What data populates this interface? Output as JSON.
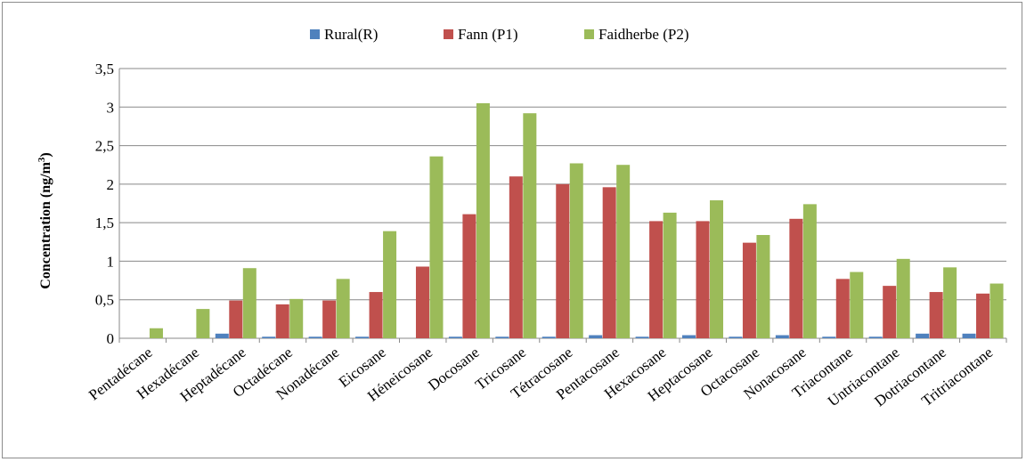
{
  "chart_data": {
    "type": "bar",
    "title": "",
    "xlabel": "",
    "ylabel": "Concentration (ng/m",
    "ylabel_sup": "3",
    "ylabel_end": ")",
    "ylim": [
      0,
      3.5
    ],
    "yticks": [
      {
        "value": 0,
        "label": "0"
      },
      {
        "value": 0.5,
        "label": "0,5"
      },
      {
        "value": 1,
        "label": "1"
      },
      {
        "value": 1.5,
        "label": "1,5"
      },
      {
        "value": 2,
        "label": "2"
      },
      {
        "value": 2.5,
        "label": "2,5"
      },
      {
        "value": 3,
        "label": "3"
      },
      {
        "value": 3.5,
        "label": "3,5"
      }
    ],
    "grid": true,
    "legend_position": "top",
    "categories": [
      "Pentadécane",
      "Hexadécane",
      "Heptadécane",
      "Octadécane",
      "Nonadécane",
      "Eicosane",
      "Héneicosane",
      "Docosane",
      "Tricosane",
      "Tétracosane",
      "Pentacosane",
      "Hexacosane",
      "Heptacosane",
      "Octacosane",
      "Nonacosane",
      "Triacontane",
      "Untriacontane",
      "Dotriacontane",
      "Tritriacontane"
    ],
    "series": [
      {
        "name": "Rural(R)",
        "color": "#4f81bd",
        "values": [
          0,
          0,
          0.06,
          0.02,
          0.02,
          0.02,
          0,
          0.02,
          0.02,
          0.02,
          0.04,
          0.02,
          0.04,
          0.02,
          0.04,
          0.02,
          0.02,
          0.06,
          0.06
        ]
      },
      {
        "name": "Fann (P1)",
        "color": "#c0504d",
        "values": [
          0,
          0,
          0.49,
          0.44,
          0.49,
          0.6,
          0.93,
          1.61,
          2.1,
          2.0,
          1.96,
          1.52,
          1.52,
          1.24,
          1.55,
          0.77,
          0.68,
          0.6,
          0.58
        ]
      },
      {
        "name": "Faidherbe (P2)",
        "color": "#9bbb59",
        "values": [
          0.13,
          0.38,
          0.91,
          0.51,
          0.77,
          1.39,
          2.36,
          3.05,
          2.92,
          2.27,
          2.25,
          1.63,
          1.79,
          1.34,
          1.74,
          0.86,
          1.03,
          0.92,
          0.71
        ]
      }
    ]
  }
}
